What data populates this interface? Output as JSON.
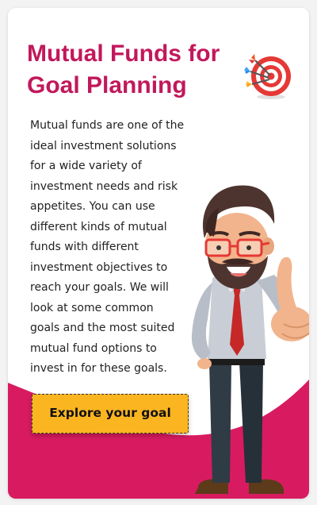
{
  "card": {
    "title": "Mutual Funds for Goal Planning",
    "description": "Mutual funds are one of the ideal investment solutions for a wide variety of investment needs and risk appetites. You can use different kinds of mutual funds with different investment objectives to reach your goals. We will look at some common goals and the most suited mutual fund options to invest in for these goals.",
    "cta_label": "Explore your goal"
  },
  "icons": {
    "target": "target-with-darts-icon",
    "illustration": "businessman-thumbs-up-illustration"
  },
  "colors": {
    "title": "#c2185b",
    "wave": "#d81b60",
    "button": "#fbb521",
    "text": "#222222"
  }
}
